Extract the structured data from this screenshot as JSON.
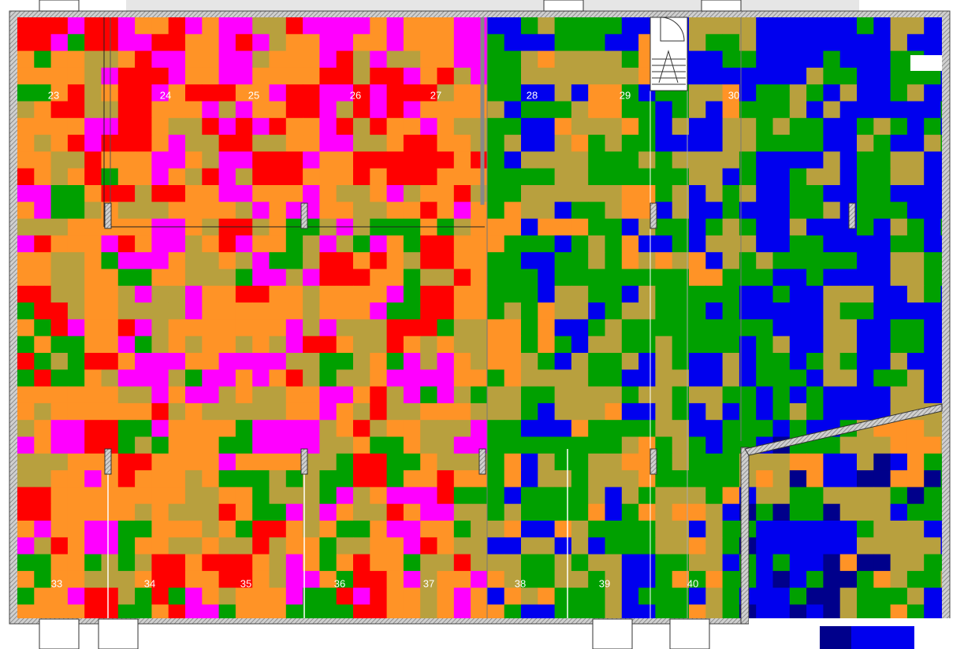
{
  "rooms": [
    {
      "label": "23"
    },
    {
      "label": "24"
    },
    {
      "label": "25"
    },
    {
      "label": "26"
    },
    {
      "label": "27"
    },
    {
      "label": "28"
    },
    {
      "label": "29"
    },
    {
      "label": "30"
    },
    {
      "label": "33"
    },
    {
      "label": "34"
    },
    {
      "label": "35"
    },
    {
      "label": "36"
    },
    {
      "label": "37"
    },
    {
      "label": "38"
    },
    {
      "label": "39"
    },
    {
      "label": "40"
    }
  ]
}
